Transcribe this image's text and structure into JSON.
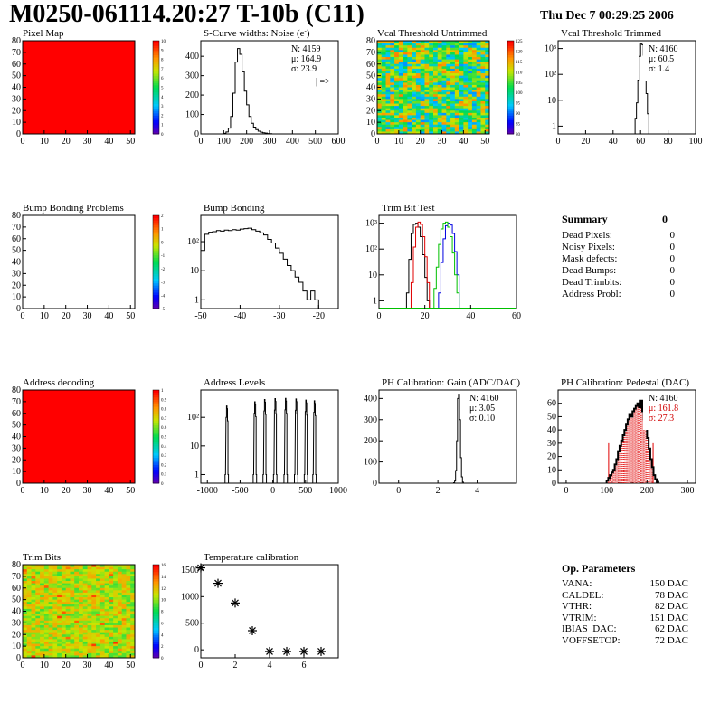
{
  "page": {
    "title": "M0250-061114.20:27 T-10b (C11)",
    "date": "Thu Dec  7 00:29:25 2006"
  },
  "colors": {
    "map_red": "#ff0000",
    "hist_black": "#000000",
    "trim_red": "#e00000",
    "trim_blue": "#0000e0",
    "trim_green": "#00c000",
    "pedestal_red": "#e00000"
  },
  "chart_data": [
    {
      "type": "heatmap",
      "title": "Pixel Map",
      "xlim": [
        0,
        52
      ],
      "ylim": [
        0,
        80
      ],
      "xticks": [
        0,
        10,
        20,
        30,
        40,
        50
      ],
      "yticks": [
        0,
        10,
        20,
        30,
        40,
        50,
        60,
        70,
        80
      ],
      "fill": "uniform",
      "fill_value": 10,
      "z_ticks": [
        "0",
        "1",
        "2",
        "3",
        "4",
        "5",
        "6",
        "7",
        "8",
        "9",
        "10"
      ]
    },
    {
      "type": "histogram",
      "title": "S-Curve widths: Noise (e",
      "title_sup": "-",
      "title_end": ")",
      "xlim": [
        0,
        600
      ],
      "ylim": [
        0,
        480
      ],
      "xticks": [
        0,
        100,
        200,
        300,
        400,
        500,
        600
      ],
      "yticks": [
        0,
        100,
        200,
        300,
        400
      ],
      "stats": [
        "N: 4159",
        "μ: 164.9",
        "σ: 23.9"
      ],
      "annotation": "| =>",
      "bins": [
        [
          100,
          3
        ],
        [
          110,
          10
        ],
        [
          120,
          30
        ],
        [
          130,
          90
        ],
        [
          140,
          210
        ],
        [
          150,
          370
        ],
        [
          160,
          440
        ],
        [
          170,
          410
        ],
        [
          180,
          320
        ],
        [
          190,
          220
        ],
        [
          200,
          150
        ],
        [
          210,
          90
        ],
        [
          220,
          55
        ],
        [
          230,
          35
        ],
        [
          240,
          22
        ],
        [
          250,
          14
        ],
        [
          260,
          9
        ],
        [
          270,
          6
        ],
        [
          280,
          4
        ],
        [
          290,
          2
        ],
        [
          300,
          1
        ]
      ],
      "bin_width": 10
    },
    {
      "type": "heatmap",
      "title": "Vcal Threshold Untrimmed",
      "xlim": [
        0,
        52
      ],
      "ylim": [
        0,
        80
      ],
      "xticks": [
        0,
        10,
        20,
        30,
        40,
        50
      ],
      "yticks": [
        0,
        10,
        20,
        30,
        40,
        50,
        60,
        70,
        80
      ],
      "fill": "noise",
      "zlim": [
        80,
        130
      ],
      "z_ticks": [
        "80",
        "85",
        "90",
        "95",
        "100",
        "105",
        "110",
        "115",
        "120",
        "125"
      ]
    },
    {
      "type": "histogram",
      "title": "Vcal Threshold Trimmed",
      "yscale": "log",
      "xlim": [
        0,
        100
      ],
      "ylim": [
        0.5,
        2000
      ],
      "xticks": [
        0,
        20,
        40,
        60,
        80,
        100
      ],
      "ytick_labels": [
        "1",
        "10",
        "10²",
        "10³"
      ],
      "stats": [
        "N: 4160",
        "μ: 60.5",
        "σ: 1.4"
      ],
      "bins": [
        [
          56,
          2
        ],
        [
          57,
          8
        ],
        [
          58,
          60
        ],
        [
          59,
          500
        ],
        [
          60,
          1500
        ],
        [
          61,
          1400
        ],
        [
          62,
          550
        ],
        [
          63,
          110
        ],
        [
          64,
          18
        ],
        [
          65,
          3
        ]
      ],
      "bin_width": 1
    },
    {
      "type": "heatmap",
      "title": "Bump Bonding Problems",
      "xlim": [
        0,
        52
      ],
      "ylim": [
        0,
        80
      ],
      "xticks": [
        0,
        10,
        20,
        30,
        40,
        50
      ],
      "yticks": [
        0,
        10,
        20,
        30,
        40,
        50,
        60,
        70,
        80
      ],
      "fill": "empty",
      "z_ticks": [
        "-5",
        "-4",
        "-3",
        "-2",
        "-1",
        "0",
        "1",
        "2"
      ]
    },
    {
      "type": "histogram",
      "title": "Bump Bonding",
      "yscale": "log",
      "xlim": [
        -50,
        -15
      ],
      "ylim": [
        0.5,
        800
      ],
      "xticks": [
        -50,
        -40,
        -30,
        -20
      ],
      "ytick_labels": [
        "1",
        "10",
        "10²"
      ],
      "bins": [
        [
          -50,
          50
        ],
        [
          -49,
          180
        ],
        [
          -48,
          210
        ],
        [
          -47,
          220
        ],
        [
          -46,
          240
        ],
        [
          -45,
          230
        ],
        [
          -44,
          250
        ],
        [
          -43,
          240
        ],
        [
          -42,
          260
        ],
        [
          -41,
          250
        ],
        [
          -40,
          270
        ],
        [
          -39,
          280
        ],
        [
          -38,
          290
        ],
        [
          -37,
          260
        ],
        [
          -36,
          230
        ],
        [
          -35,
          200
        ],
        [
          -34,
          170
        ],
        [
          -33,
          120
        ],
        [
          -32,
          90
        ],
        [
          -31,
          60
        ],
        [
          -30,
          40
        ],
        [
          -29,
          25
        ],
        [
          -28,
          15
        ],
        [
          -27,
          10
        ],
        [
          -26,
          6
        ],
        [
          -25,
          4
        ],
        [
          -24,
          2
        ],
        [
          -23,
          1
        ],
        [
          -22,
          2
        ],
        [
          -21,
          1
        ]
      ],
      "bin_width": 1
    },
    {
      "type": "histogram",
      "title": "Trim Bit Test",
      "yscale": "log",
      "xlim": [
        0,
        60
      ],
      "ylim": [
        0.5,
        2000
      ],
      "xticks": [
        0,
        20,
        40,
        60
      ],
      "ytick_labels": [
        "1",
        "10",
        "10²",
        "10³"
      ],
      "series": [
        {
          "color": "black",
          "bins": [
            [
              12,
              2
            ],
            [
              13,
              40
            ],
            [
              14,
              400
            ],
            [
              15,
              900
            ],
            [
              16,
              1000
            ],
            [
              17,
              700
            ],
            [
              18,
              300
            ],
            [
              19,
              60
            ],
            [
              20,
              8
            ],
            [
              21,
              1
            ]
          ]
        },
        {
          "color": "red",
          "bins": [
            [
              14,
              5
            ],
            [
              15,
              120
            ],
            [
              16,
              700
            ],
            [
              17,
              1100
            ],
            [
              18,
              900
            ],
            [
              19,
              300
            ],
            [
              20,
              50
            ],
            [
              21,
              5
            ]
          ]
        },
        {
          "color": "blue",
          "bins": [
            [
              26,
              2
            ],
            [
              27,
              30
            ],
            [
              28,
              250
            ],
            [
              29,
              800
            ],
            [
              30,
              1000
            ],
            [
              31,
              850
            ],
            [
              32,
              400
            ],
            [
              33,
              80
            ],
            [
              34,
              10
            ]
          ]
        },
        {
          "color": "green",
          "bins": [
            [
              24,
              3
            ],
            [
              25,
              20
            ],
            [
              26,
              150
            ],
            [
              27,
              600
            ],
            [
              28,
              1000
            ],
            [
              29,
              1100
            ],
            [
              30,
              700
            ],
            [
              31,
              300
            ],
            [
              32,
              70
            ],
            [
              33,
              10
            ],
            [
              34,
              2
            ]
          ]
        }
      ],
      "bin_width": 1
    },
    {
      "type": "heatmap",
      "title": "Address decoding",
      "xlim": [
        0,
        52
      ],
      "ylim": [
        0,
        80
      ],
      "xticks": [
        0,
        10,
        20,
        30,
        40,
        50
      ],
      "yticks": [
        0,
        10,
        20,
        30,
        40,
        50,
        60,
        70,
        80
      ],
      "fill": "uniform",
      "fill_value": 1,
      "z_ticks": [
        "0",
        "0.1",
        "0.2",
        "0.3",
        "0.4",
        "0.5",
        "0.6",
        "0.7",
        "0.8",
        "0.9",
        "1"
      ]
    },
    {
      "type": "histogram",
      "title": "Address Levels",
      "yscale": "log",
      "xlim": [
        -1100,
        1000
      ],
      "ylim": [
        0.5,
        900
      ],
      "xticks": [
        -1000,
        -500,
        0,
        500,
        1000
      ],
      "ytick_labels": [
        "1",
        "10",
        "10²"
      ],
      "peaks": [
        -700,
        -270,
        -120,
        40,
        200,
        360,
        510,
        640
      ],
      "peak_heights": [
        250,
        350,
        420,
        450,
        460,
        440,
        400,
        380
      ],
      "peak_width": 60
    },
    {
      "type": "histogram",
      "title": "PH Calibration: Gain (ADC/DAC)",
      "xlim": [
        -1,
        6
      ],
      "ylim": [
        0,
        440
      ],
      "xticks": [
        0,
        2,
        4
      ],
      "yticks": [
        0,
        100,
        200,
        300,
        400
      ],
      "stats": [
        "N: 4160",
        "μ: 3.05",
        "σ: 0.10"
      ],
      "bins": [
        [
          2.8,
          2
        ],
        [
          2.85,
          10
        ],
        [
          2.9,
          60
        ],
        [
          2.95,
          200
        ],
        [
          3.0,
          400
        ],
        [
          3.05,
          420
        ],
        [
          3.1,
          300
        ],
        [
          3.15,
          120
        ],
        [
          3.2,
          30
        ],
        [
          3.25,
          5
        ]
      ],
      "bin_width": 0.05
    },
    {
      "type": "histogram",
      "title": "PH Calibration: Pedestal (DAC)",
      "xlim": [
        -20,
        320
      ],
      "ylim": [
        0,
        70
      ],
      "xticks": [
        0,
        100,
        200,
        300
      ],
      "yticks": [
        0,
        10,
        20,
        30,
        40,
        50,
        60
      ],
      "stats": [
        "N: 4160",
        "μ: 161.8",
        "σ: 27.3"
      ],
      "stats_colors": [
        "black",
        "red",
        "red"
      ],
      "fit_range": [
        105,
        215
      ],
      "bins": [
        [
          100,
          2
        ],
        [
          104,
          4
        ],
        [
          108,
          6
        ],
        [
          112,
          8
        ],
        [
          116,
          10
        ],
        [
          120,
          14
        ],
        [
          124,
          18
        ],
        [
          128,
          24
        ],
        [
          132,
          28
        ],
        [
          136,
          32
        ],
        [
          140,
          36
        ],
        [
          144,
          40
        ],
        [
          148,
          44
        ],
        [
          152,
          48
        ],
        [
          156,
          52
        ],
        [
          160,
          50
        ],
        [
          164,
          54
        ],
        [
          168,
          56
        ],
        [
          172,
          58
        ],
        [
          176,
          60
        ],
        [
          180,
          57
        ],
        [
          184,
          62
        ],
        [
          188,
          54
        ],
        [
          192,
          48
        ],
        [
          196,
          42
        ],
        [
          200,
          34
        ],
        [
          204,
          26
        ],
        [
          208,
          18
        ],
        [
          212,
          12
        ],
        [
          216,
          6
        ],
        [
          220,
          3
        ],
        [
          224,
          1
        ]
      ],
      "bin_width": 4
    },
    {
      "type": "heatmap",
      "title": "Trim Bits",
      "xlim": [
        0,
        52
      ],
      "ylim": [
        0,
        80
      ],
      "xticks": [
        0,
        10,
        20,
        30,
        40,
        50
      ],
      "yticks": [
        0,
        10,
        20,
        30,
        40,
        50,
        60,
        70,
        80
      ],
      "fill": "noise_mid",
      "zlim": [
        0,
        16
      ],
      "z_ticks": [
        "0",
        "2",
        "4",
        "6",
        "8",
        "10",
        "12",
        "14",
        "16"
      ]
    },
    {
      "type": "scatter",
      "title": "Temperature calibration",
      "xlim": [
        0,
        8
      ],
      "ylim": [
        -150,
        1600
      ],
      "xticks": [
        0,
        2,
        4,
        6
      ],
      "yticks": [
        0,
        500,
        1000,
        1500
      ],
      "x": [
        0,
        1,
        2,
        3,
        4,
        5,
        6,
        7
      ],
      "y": [
        1540,
        1250,
        880,
        360,
        -30,
        -30,
        -30,
        -30
      ]
    }
  ],
  "summary": {
    "title": "Summary",
    "total": "0",
    "rows": [
      {
        "label": "Dead Pixels:",
        "value": "0"
      },
      {
        "label": "Noisy Pixels:",
        "value": "0"
      },
      {
        "label": "Mask defects:",
        "value": "0"
      },
      {
        "label": "Dead Bumps:",
        "value": "0"
      },
      {
        "label": "Dead Trimbits:",
        "value": "0"
      },
      {
        "label": "Address Probl:",
        "value": "0"
      }
    ]
  },
  "op_parameters": {
    "title": "Op. Parameters",
    "rows": [
      {
        "label": "VANA:",
        "value": "150 DAC"
      },
      {
        "label": "CALDEL:",
        "value": "78 DAC"
      },
      {
        "label": "VTHR:",
        "value": "82 DAC"
      },
      {
        "label": "VTRIM:",
        "value": "151 DAC"
      },
      {
        "label": "IBIAS_DAC:",
        "value": "62 DAC"
      },
      {
        "label": "VOFFSETOP:",
        "value": "72 DAC"
      }
    ]
  }
}
